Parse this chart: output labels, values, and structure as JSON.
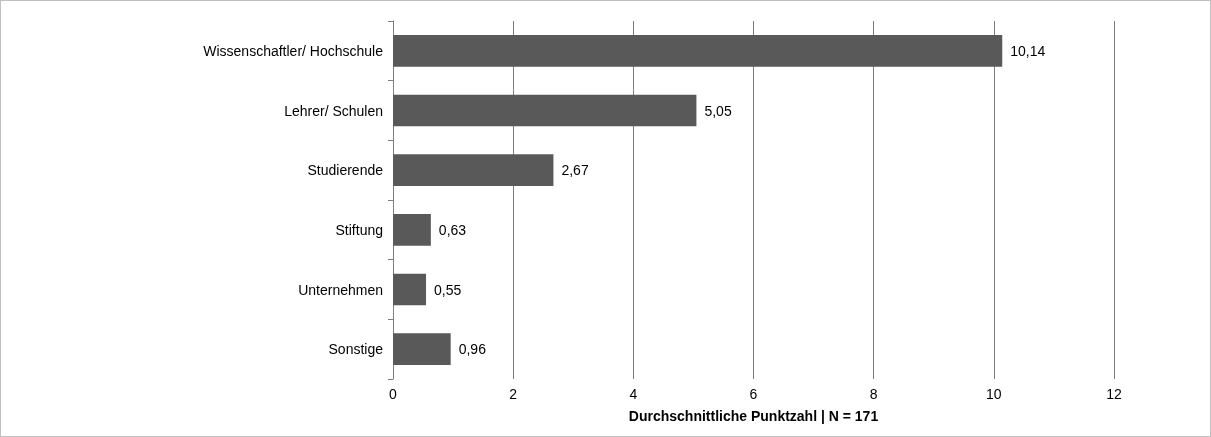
{
  "chart_data": {
    "type": "bar",
    "orientation": "horizontal",
    "xlabel": "Durchschnittliche Punktzahl | N = 171",
    "categories": [
      "Wissenschaftler/ Hochschule",
      "Lehrer/ Schulen",
      "Studierende",
      "Stiftung",
      "Unternehmen",
      "Sonstige"
    ],
    "values": [
      10.14,
      5.05,
      2.67,
      0.63,
      0.55,
      0.96
    ],
    "value_labels": [
      "10,14",
      "5,05",
      "2,67",
      "0,63",
      "0,55",
      "0,96"
    ],
    "color": "#595959",
    "xlim": [
      0,
      12
    ],
    "xticks": [
      0,
      2,
      4,
      6,
      8,
      10,
      12
    ],
    "grid": "x"
  }
}
